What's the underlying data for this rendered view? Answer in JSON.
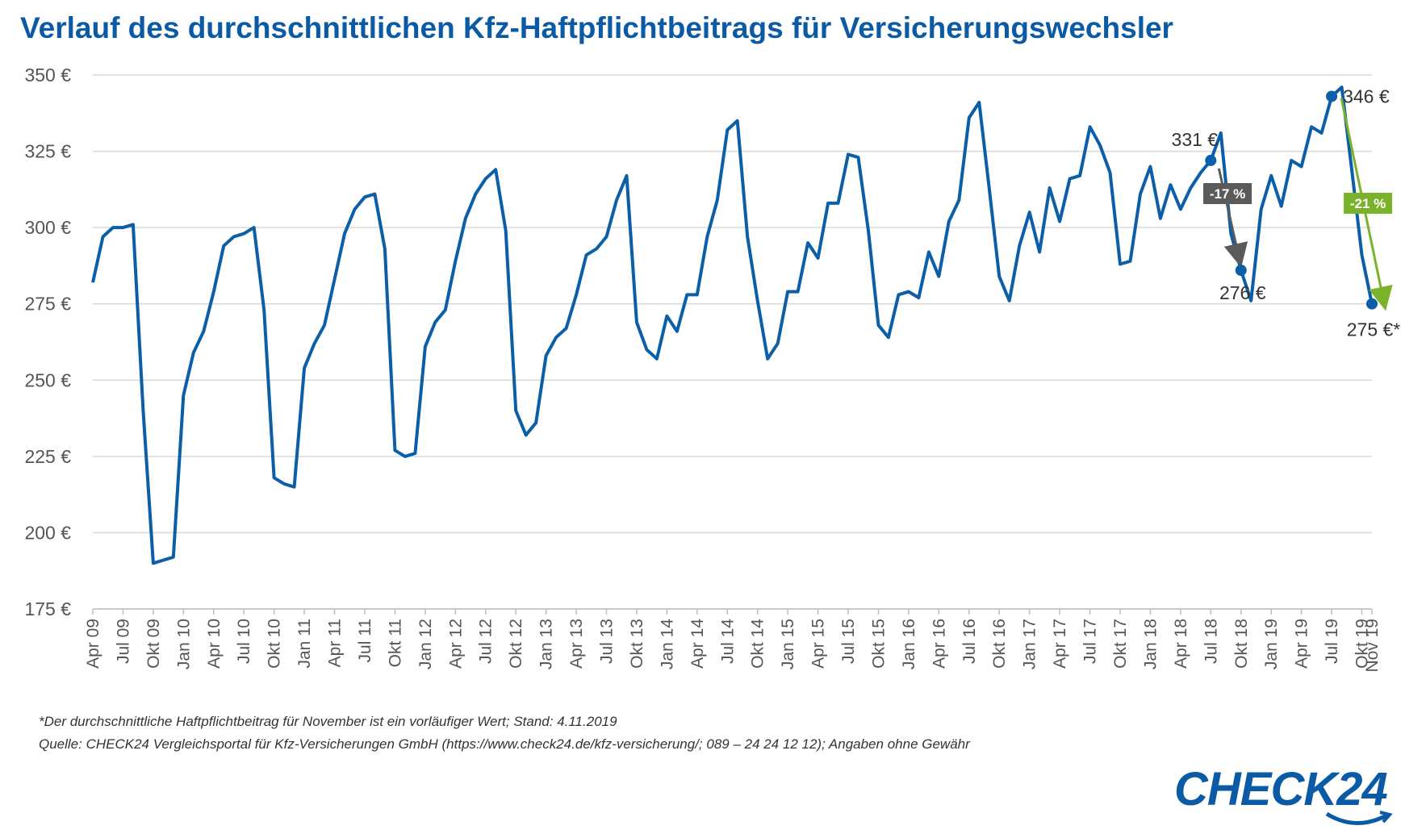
{
  "title": "Verlauf des durchschnittlichen Kfz-Haftpflichtbeitrags für Versicherungswechsler",
  "footnote": "*Der durchschnittliche Haftpflichtbeitrag für November ist ein vorläufiger Wert; Stand: 4.11.2019",
  "source": "Quelle: CHECK24 Vergleichsportal für Kfz-Versicherungen GmbH (https://www.check24.de/kfz-versicherung/; 089 – 24 24 12 12); Angaben ohne Gewähr",
  "logo": "CHECK24",
  "colors": {
    "line": "#0b5ea8",
    "title": "#0a5aa5",
    "badge_gray": "#5a5a5a",
    "badge_green": "#7ab22c",
    "grid": "#d9d9d9"
  },
  "chart_data": {
    "type": "line",
    "title": "Verlauf des durchschnittlichen Kfz-Haftpflichtbeitrags für Versicherungswechsler",
    "ylim": [
      175,
      350
    ],
    "yticks": [
      175,
      200,
      225,
      250,
      275,
      300,
      325,
      350
    ],
    "ytick_labels": [
      "175 €",
      "200 €",
      "225 €",
      "250 €",
      "275 €",
      "300 €",
      "325 €",
      "350 €"
    ],
    "xtick_labels": [
      "Apr 09",
      "Jul 09",
      "Okt 09",
      "Jan 10",
      "Apr 10",
      "Jul 10",
      "Okt 10",
      "Jan 11",
      "Apr 11",
      "Jul 11",
      "Okt 11",
      "Jan 12",
      "Apr 12",
      "Jul 12",
      "Okt 12",
      "Jan 13",
      "Apr 13",
      "Jul 13",
      "Okt 13",
      "Jan 14",
      "Apr 14",
      "Jul 14",
      "Okt 14",
      "Jan 15",
      "Apr 15",
      "Jul 15",
      "Okt 15",
      "Jan 16",
      "Apr 16",
      "Jul 16",
      "Okt 16",
      "Jan 17",
      "Apr 17",
      "Jul 17",
      "Okt 17",
      "Jan 18",
      "Apr 18",
      "Jul 18",
      "Okt 18",
      "Jan 19",
      "Apr 19",
      "Jul 19",
      "Okt 19",
      "Nov 19"
    ],
    "grid": true,
    "series": [
      {
        "values": [
          282,
          297,
          300,
          300,
          301,
          240,
          190,
          191,
          192,
          245,
          259,
          266,
          279,
          294,
          297,
          298,
          300,
          273,
          218,
          216,
          215,
          254,
          262,
          268,
          283,
          298,
          306,
          310,
          311,
          293,
          227,
          225,
          226,
          261,
          269,
          273,
          289,
          303,
          311,
          316,
          319,
          299,
          240,
          232,
          236,
          258,
          264,
          267,
          278,
          291,
          293,
          297,
          309,
          317,
          269,
          260,
          257,
          271,
          266,
          278,
          278,
          297,
          309,
          332,
          335,
          297,
          276,
          257,
          262,
          279,
          279,
          295,
          290,
          308,
          308,
          324,
          323,
          299,
          268,
          264,
          278,
          279,
          277,
          292,
          284,
          302,
          309,
          336,
          341,
          313,
          284,
          276,
          294,
          305,
          292,
          313,
          302,
          316,
          317,
          333,
          327,
          318,
          288,
          289,
          311,
          320,
          303,
          314,
          306,
          313,
          318,
          322,
          331,
          298,
          286,
          276,
          306,
          317,
          307,
          322,
          320,
          333,
          331,
          343,
          346,
          319,
          291,
          275
        ]
      }
    ],
    "annotations": [
      {
        "label": "331 €",
        "value": 331
      },
      {
        "label": "276 €",
        "value": 276
      },
      {
        "label": "346 €",
        "value": 346
      },
      {
        "label": "275 €*",
        "value": 275
      },
      {
        "label": "-17 %",
        "from": 331,
        "to": 276
      },
      {
        "label": "-21 %",
        "from": 346,
        "to": 275
      }
    ]
  }
}
